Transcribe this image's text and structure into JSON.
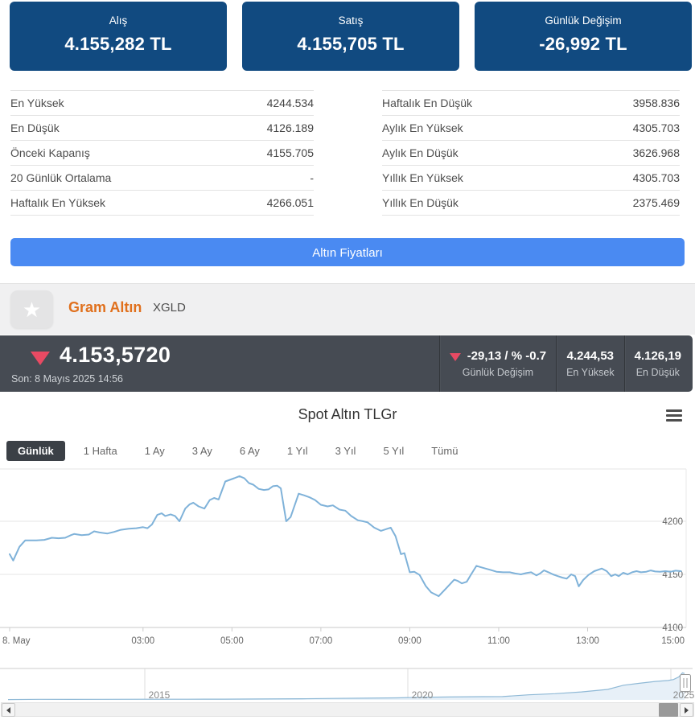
{
  "cards": [
    {
      "label": "Alış",
      "value": "4.155,282 TL"
    },
    {
      "label": "Satış",
      "value": "4.155,705 TL"
    },
    {
      "label": "Günlük Değişim",
      "value": "-26,992 TL"
    }
  ],
  "stats": {
    "left": [
      {
        "label": "En Yüksek",
        "value": "4244.534"
      },
      {
        "label": "En Düşük",
        "value": "4126.189"
      },
      {
        "label": "Önceki Kapanış",
        "value": "4155.705"
      },
      {
        "label": "20 Günlük Ortalama",
        "value": "-"
      },
      {
        "label": "Haftalık En Yüksek",
        "value": "4266.051"
      }
    ],
    "right": [
      {
        "label": "Haftalık En Düşük",
        "value": "3958.836"
      },
      {
        "label": "Aylık En Yüksek",
        "value": "4305.703"
      },
      {
        "label": "Aylık En Düşük",
        "value": "3626.968"
      },
      {
        "label": "Yıllık En Yüksek",
        "value": "4305.703"
      },
      {
        "label": "Yıllık En Düşük",
        "value": "2375.469"
      }
    ]
  },
  "button": {
    "label": "Altın Fiyatları"
  },
  "instrument": {
    "star_icon": "★",
    "name": "Gram Altın",
    "code": "XGLD"
  },
  "quote": {
    "direction": "down",
    "price": "4.153,5720",
    "last_update": "Son: 8 Mayıs 2025 14:56",
    "change": {
      "value": "-29,13 / % -0.7",
      "label": "Günlük Değişim"
    },
    "high": {
      "value": "4.244,53",
      "label": "En Yüksek"
    },
    "low": {
      "value": "4.126,19",
      "label": "En Düşük"
    }
  },
  "chart": {
    "title": "Spot Altın TLGr",
    "selected_range": "Günlük",
    "ranges": [
      "Günlük",
      "1 Hafta",
      "1 Ay",
      "3 Ay",
      "6 Ay",
      "1 Yıl",
      "3 Yıl",
      "5 Yıl",
      "Tümü"
    ]
  },
  "chart_data": {
    "type": "line",
    "title": "Spot Altın TLGr",
    "ylim": [
      4100,
      4252
    ],
    "xlim_hours": [
      0,
      15.1
    ],
    "grid": true,
    "y_ticks": [
      {
        "label": "4200",
        "value": 4200
      },
      {
        "label": "4150",
        "value": 4150
      },
      {
        "label": "4100",
        "value": 4100
      }
    ],
    "x_ticks": [
      {
        "label": "8. May",
        "hour": 0
      },
      {
        "label": "03:00",
        "hour": 3
      },
      {
        "label": "05:00",
        "hour": 5
      },
      {
        "label": "07:00",
        "hour": 7
      },
      {
        "label": "09:00",
        "hour": 9
      },
      {
        "label": "11:00",
        "hour": 11
      },
      {
        "label": "13:00",
        "hour": 13
      },
      {
        "label": "15:00",
        "hour": 15
      }
    ],
    "series": [
      {
        "name": "Spot Altın TLGr",
        "points": [
          [
            0,
            4169
          ],
          [
            0.08,
            4163
          ],
          [
            0.22,
            4176
          ],
          [
            0.35,
            4182
          ],
          [
            0.6,
            4182
          ],
          [
            0.78,
            4182.5
          ],
          [
            0.95,
            4184.5
          ],
          [
            1.1,
            4184
          ],
          [
            1.25,
            4184.5
          ],
          [
            1.38,
            4187
          ],
          [
            1.45,
            4188
          ],
          [
            1.62,
            4187
          ],
          [
            1.78,
            4187.5
          ],
          [
            1.9,
            4190.5
          ],
          [
            2.02,
            4189.5
          ],
          [
            2.2,
            4188.5
          ],
          [
            2.35,
            4190
          ],
          [
            2.5,
            4192
          ],
          [
            2.68,
            4193
          ],
          [
            2.85,
            4193.5
          ],
          [
            3.0,
            4194.5
          ],
          [
            3.1,
            4193.5
          ],
          [
            3.2,
            4197
          ],
          [
            3.32,
            4206
          ],
          [
            3.42,
            4207.5
          ],
          [
            3.5,
            4205
          ],
          [
            3.62,
            4206.5
          ],
          [
            3.72,
            4205
          ],
          [
            3.82,
            4200
          ],
          [
            3.95,
            4212
          ],
          [
            4.05,
            4216
          ],
          [
            4.13,
            4217.5
          ],
          [
            4.25,
            4214
          ],
          [
            4.38,
            4212
          ],
          [
            4.5,
            4220
          ],
          [
            4.6,
            4222
          ],
          [
            4.7,
            4220.5
          ],
          [
            4.85,
            4237.5
          ],
          [
            4.95,
            4239
          ],
          [
            5.05,
            4240.5
          ],
          [
            5.17,
            4242.5
          ],
          [
            5.28,
            4240.5
          ],
          [
            5.38,
            4236
          ],
          [
            5.48,
            4234.5
          ],
          [
            5.6,
            4230.5
          ],
          [
            5.72,
            4229.5
          ],
          [
            5.82,
            4230
          ],
          [
            5.92,
            4233
          ],
          [
            6.02,
            4233.5
          ],
          [
            6.1,
            4231
          ],
          [
            6.22,
            4200
          ],
          [
            6.32,
            4204
          ],
          [
            6.5,
            4226
          ],
          [
            6.62,
            4224.5
          ],
          [
            6.75,
            4222.5
          ],
          [
            6.87,
            4220
          ],
          [
            7.0,
            4215.5
          ],
          [
            7.15,
            4214
          ],
          [
            7.27,
            4215
          ],
          [
            7.42,
            4211
          ],
          [
            7.55,
            4210
          ],
          [
            7.68,
            4205
          ],
          [
            7.83,
            4201
          ],
          [
            7.95,
            4200
          ],
          [
            8.05,
            4199
          ],
          [
            8.2,
            4194
          ],
          [
            8.35,
            4191
          ],
          [
            8.5,
            4193
          ],
          [
            8.57,
            4194
          ],
          [
            8.68,
            4186
          ],
          [
            8.8,
            4169
          ],
          [
            8.88,
            4170
          ],
          [
            9.0,
            4152
          ],
          [
            9.1,
            4152.5
          ],
          [
            9.22,
            4149.5
          ],
          [
            9.36,
            4139
          ],
          [
            9.48,
            4133
          ],
          [
            9.65,
            4129.5
          ],
          [
            9.82,
            4137
          ],
          [
            10.0,
            4145
          ],
          [
            10.07,
            4144
          ],
          [
            10.17,
            4141.5
          ],
          [
            10.28,
            4143
          ],
          [
            10.38,
            4150
          ],
          [
            10.5,
            4158
          ],
          [
            10.58,
            4157
          ],
          [
            10.7,
            4155.5
          ],
          [
            10.83,
            4154
          ],
          [
            10.95,
            4152.5
          ],
          [
            11.1,
            4152
          ],
          [
            11.25,
            4152
          ],
          [
            11.37,
            4150.8
          ],
          [
            11.5,
            4150
          ],
          [
            11.62,
            4151.2
          ],
          [
            11.73,
            4152
          ],
          [
            11.85,
            4149
          ],
          [
            11.93,
            4150.8
          ],
          [
            12.02,
            4153.8
          ],
          [
            12.12,
            4152
          ],
          [
            12.22,
            4150
          ],
          [
            12.33,
            4148.3
          ],
          [
            12.43,
            4147
          ],
          [
            12.53,
            4146
          ],
          [
            12.63,
            4150
          ],
          [
            12.72,
            4148.3
          ],
          [
            12.8,
            4138.7
          ],
          [
            12.9,
            4144.7
          ],
          [
            13.02,
            4149.5
          ],
          [
            13.15,
            4153
          ],
          [
            13.32,
            4155.5
          ],
          [
            13.43,
            4153
          ],
          [
            13.53,
            4148.3
          ],
          [
            13.62,
            4150
          ],
          [
            13.7,
            4148.3
          ],
          [
            13.8,
            4151.5
          ],
          [
            13.9,
            4150
          ],
          [
            14.0,
            4152
          ],
          [
            14.1,
            4153
          ],
          [
            14.2,
            4152
          ],
          [
            14.32,
            4152.5
          ],
          [
            14.42,
            4153.7
          ],
          [
            14.52,
            4152.7
          ],
          [
            14.63,
            4152.5
          ],
          [
            14.75,
            4153
          ],
          [
            14.87,
            4152.5
          ],
          [
            14.98,
            4153.5
          ],
          [
            15.1,
            4153
          ]
        ]
      }
    ],
    "navigator": {
      "x_ticks": [
        {
          "label": "2015",
          "year": 2015
        },
        {
          "label": "2020",
          "year": 2020
        },
        {
          "label": "2025",
          "year": 2025
        }
      ],
      "points": [
        [
          2012.4,
          55
        ],
        [
          2013,
          85
        ],
        [
          2013.6,
          78
        ],
        [
          2014.2,
          88
        ],
        [
          2015,
          95
        ],
        [
          2015.8,
          102
        ],
        [
          2016.5,
          118
        ],
        [
          2017.2,
          145
        ],
        [
          2018,
          175
        ],
        [
          2018.6,
          230
        ],
        [
          2019.2,
          265
        ],
        [
          2019.8,
          310
        ],
        [
          2020.2,
          390
        ],
        [
          2020.8,
          450
        ],
        [
          2021.4,
          500
        ],
        [
          2021.8,
          520
        ],
        [
          2022.3,
          800
        ],
        [
          2022.8,
          980
        ],
        [
          2023.3,
          1250
        ],
        [
          2023.8,
          1650
        ],
        [
          2024.1,
          2300
        ],
        [
          2024.4,
          2600
        ],
        [
          2024.7,
          2900
        ],
        [
          2024.95,
          3050
        ],
        [
          2025.05,
          3200
        ],
        [
          2025.15,
          3600
        ],
        [
          2025.22,
          4244
        ],
        [
          2025.27,
          4150
        ]
      ]
    }
  },
  "colors": {
    "card_bg": "#114a80",
    "button_bg": "#4a8af2",
    "quote_bar_bg": "#464b53",
    "down_red": "#e84a63",
    "accent_orange": "#e0701d",
    "line_blue": "#7fb2d9",
    "nav_fill": "#e7f0f8",
    "selected_tab_bg": "#3b4046"
  }
}
